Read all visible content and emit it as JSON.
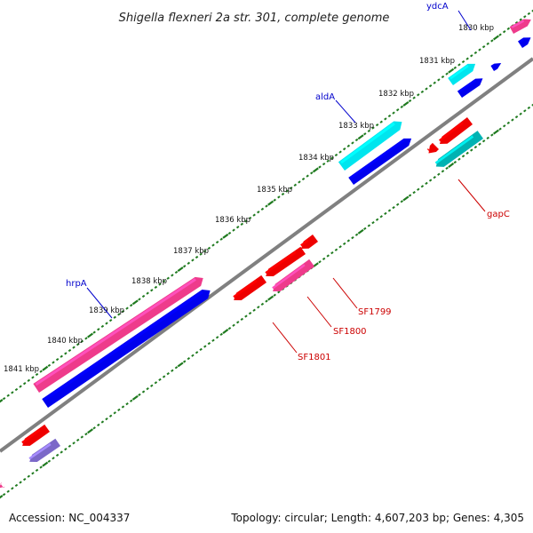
{
  "title": "Shigella flexneri 2a str. 301, complete genome",
  "ticks": [
    "1830 kbp",
    "1831 kbp",
    "1832 kbp",
    "1833 kbp",
    "1834 kbp",
    "1835 kbp",
    "1836 kbp",
    "1837 kbp",
    "1838 kbp",
    "1839 kbp",
    "1840 kbp",
    "1841 kbp"
  ],
  "gene_labels": {
    "ydcA": "ydcA",
    "aldA": "aldA",
    "hrpA": "hrpA",
    "gapC": "gapC",
    "SF1799": "SF1799",
    "SF1800": "SF1800",
    "SF1801": "SF1801"
  },
  "colors": {
    "backbone": "#808080",
    "tick_marks": "#1f7a1f",
    "forward_gene": "#0000ee",
    "forward_cds": "#00e5ee",
    "reverse_gene": "#ee0000",
    "reverse_cds": "#00b2b2",
    "pink_gene": "#ee3b8b",
    "purple_gene": "#7b68c8",
    "label_blue": "#0000cc",
    "label_red": "#cc0000"
  },
  "footer": {
    "accession": "Accession: NC_004337",
    "topology": "Topology: circular; Length: 4,607,203 bp; Genes: 4,305"
  }
}
